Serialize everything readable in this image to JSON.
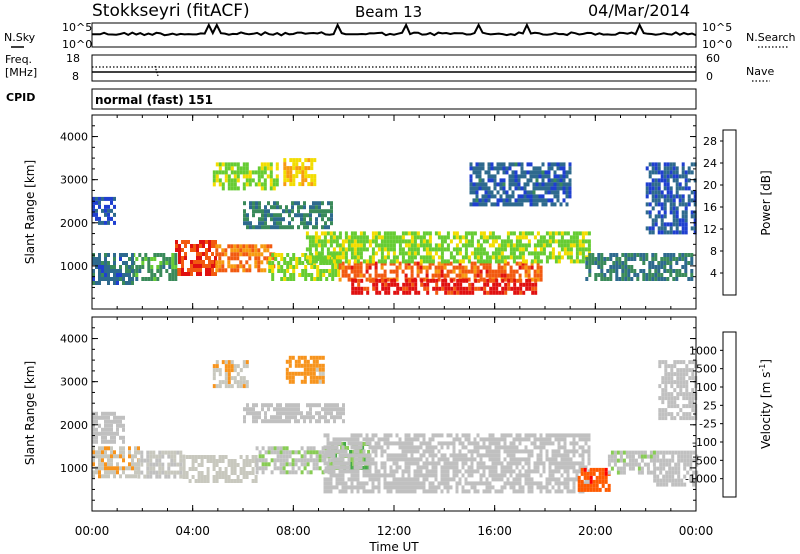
{
  "header": {
    "station": "Stokkseyri (fitACF)",
    "beam": "Beam 13",
    "date": "04/Mar/2014"
  },
  "side_labels": {
    "nsky": "N.Sky",
    "nsearch": "N.Search",
    "freq_line1": "Freq.",
    "freq_line2": "[MHz]",
    "nave": "Nave",
    "cpid": "CPID"
  },
  "noise_panel": {
    "left_ticks": [
      "10^5",
      "10^0"
    ],
    "right_ticks": [
      "10^5",
      "10^0"
    ]
  },
  "freq_panel": {
    "left_ticks": [
      "18",
      "8"
    ],
    "right_ticks": [
      "60",
      "0"
    ]
  },
  "cpid_panel": {
    "text": "normal (fast) 151"
  },
  "x_axis": {
    "label": "Time UT",
    "ticks": [
      "00:00",
      "04:00",
      "08:00",
      "12:00",
      "16:00",
      "20:00",
      "00:00"
    ]
  },
  "colors": {
    "power_scale": [
      "#1f3fd0",
      "#2e6a8e",
      "#3a8a5a",
      "#66cc33",
      "#f2dd00",
      "#f79b10",
      "#f25a10",
      "#e01010"
    ],
    "velocity_scale": [
      "#ff0000",
      "#ff5a00",
      "#f7941d",
      "#c8c8be",
      "#c0c0c0",
      "#88cc55",
      "#44aa44",
      "#2a6a6a",
      "#1a2a9a"
    ]
  },
  "chart_data": [
    {
      "type": "heatmap",
      "name": "power-panel",
      "title": "",
      "xlabel": "",
      "ylabel": "Slant Range [km]",
      "yticks": [
        "1000",
        "2000",
        "3000",
        "4000"
      ],
      "ylim": [
        0,
        4500
      ],
      "xlim_hours": [
        0,
        24
      ],
      "colorbar": {
        "label": "Power [dB]",
        "ticks": [
          "4",
          "8",
          "12",
          "16",
          "20",
          "24",
          "28"
        ],
        "range": [
          0,
          30
        ]
      },
      "echo_regions": [
        {
          "t0": 3.3,
          "t1": 4.9,
          "r0": 850,
          "r1": 1600,
          "value": 26
        },
        {
          "t0": 4.9,
          "t1": 7.2,
          "r0": 900,
          "r1": 1500,
          "value": 22
        },
        {
          "t0": 1.6,
          "t1": 3.3,
          "r0": 700,
          "r1": 1300,
          "value": 10
        },
        {
          "t0": 0.0,
          "t1": 1.6,
          "r0": 600,
          "r1": 1300,
          "value": 6
        },
        {
          "t0": 7.0,
          "t1": 9.8,
          "r0": 700,
          "r1": 1300,
          "value": 14
        },
        {
          "t0": 9.8,
          "t1": 17.8,
          "r0": 650,
          "r1": 1100,
          "value": 24
        },
        {
          "t0": 10.3,
          "t1": 17.6,
          "r0": 400,
          "r1": 700,
          "value": 28
        },
        {
          "t0": 8.5,
          "t1": 19.8,
          "r0": 1100,
          "r1": 1800,
          "value": 14
        },
        {
          "t0": 4.8,
          "t1": 7.4,
          "r0": 2800,
          "r1": 3400,
          "value": 14
        },
        {
          "t0": 7.6,
          "t1": 8.8,
          "r0": 2900,
          "r1": 3500,
          "value": 18
        },
        {
          "t0": 6.0,
          "t1": 9.5,
          "r0": 1900,
          "r1": 2500,
          "value": 8
        },
        {
          "t0": 15.0,
          "t1": 19.0,
          "r0": 2400,
          "r1": 3400,
          "value": 5
        },
        {
          "t0": 19.6,
          "t1": 23.8,
          "r0": 700,
          "r1": 1300,
          "value": 8
        },
        {
          "t0": 22.0,
          "t1": 24.0,
          "r0": 1800,
          "r1": 3400,
          "value": 4
        },
        {
          "t0": 0.0,
          "t1": 0.9,
          "r0": 2000,
          "r1": 2600,
          "value": 4
        }
      ]
    },
    {
      "type": "heatmap",
      "name": "velocity-panel",
      "title": "",
      "xlabel": "Time UT",
      "ylabel": "Slant Range [km]",
      "yticks": [
        "1000",
        "2000",
        "3000",
        "4000"
      ],
      "ylim": [
        0,
        4500
      ],
      "xlim_hours": [
        0,
        24
      ],
      "colorbar": {
        "label": "Velocity [m s^-1]",
        "ticks": [
          "1000",
          "500",
          "100",
          "25",
          "-25",
          "-100",
          "-500",
          "-1000"
        ],
        "range": [
          -1000,
          1000
        ]
      },
      "echo_regions": [
        {
          "t0": 0.0,
          "t1": 1.8,
          "r0": 800,
          "r1": 1500,
          "value": -300
        },
        {
          "t0": 1.8,
          "t1": 3.6,
          "r0": 800,
          "r1": 1400,
          "value": -120
        },
        {
          "t0": 3.6,
          "t1": 6.5,
          "r0": 700,
          "r1": 1300,
          "value": -200
        },
        {
          "t0": 6.5,
          "t1": 9.5,
          "r0": 900,
          "r1": 1500,
          "value": 80
        },
        {
          "t0": 9.5,
          "t1": 11.0,
          "r0": 1000,
          "r1": 1600,
          "value": 300
        },
        {
          "t0": 9.2,
          "t1": 19.8,
          "r0": 500,
          "r1": 1800,
          "value": 0
        },
        {
          "t0": 6.0,
          "t1": 10.0,
          "r0": 2100,
          "r1": 2500,
          "value": 0
        },
        {
          "t0": 0.0,
          "t1": 1.2,
          "r0": 1600,
          "r1": 2300,
          "value": 0
        },
        {
          "t0": 4.8,
          "t1": 6.2,
          "r0": 2900,
          "r1": 3500,
          "value": -300
        },
        {
          "t0": 7.7,
          "t1": 9.2,
          "r0": 3000,
          "r1": 3600,
          "value": -400
        },
        {
          "t0": 19.3,
          "t1": 20.5,
          "r0": 500,
          "r1": 1000,
          "value": -700
        },
        {
          "t0": 22.3,
          "t1": 24.0,
          "r0": 600,
          "r1": 1400,
          "value": 0
        },
        {
          "t0": 22.5,
          "t1": 24.0,
          "r0": 2200,
          "r1": 3500,
          "value": 0
        },
        {
          "t0": 20.5,
          "t1": 22.3,
          "r0": 900,
          "r1": 1400,
          "value": 60
        }
      ]
    }
  ]
}
